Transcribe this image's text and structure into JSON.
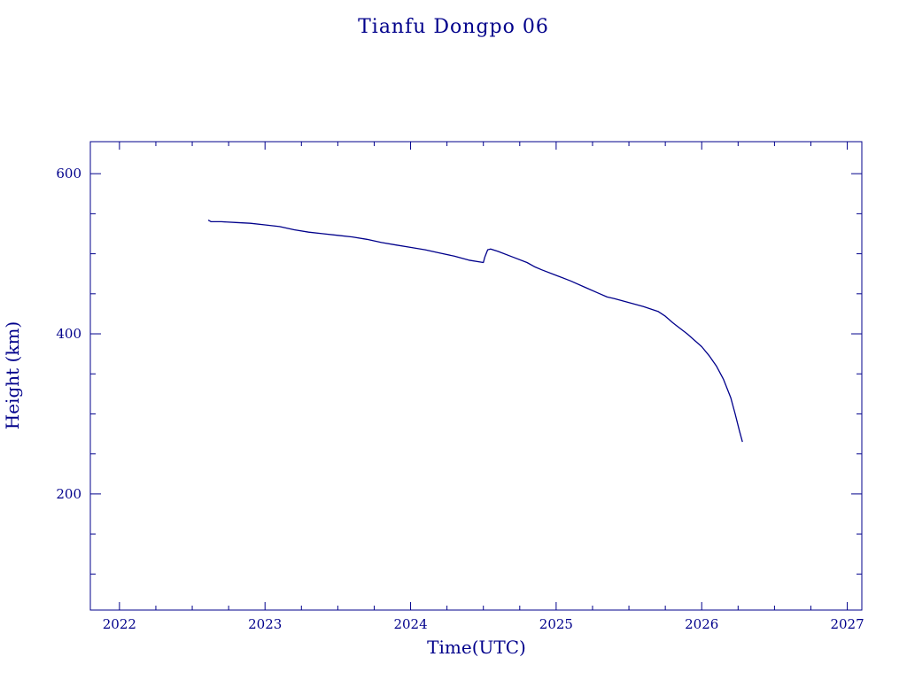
{
  "chart_data": {
    "type": "line",
    "title": "Tianfu Dongpo 06",
    "xlabel": "Time(UTC)",
    "ylabel": "Height (km)",
    "xlim": [
      2021.8,
      2027.1
    ],
    "ylim": [
      55,
      640
    ],
    "x_ticks": [
      2022,
      2023,
      2024,
      2025,
      2026,
      2027
    ],
    "x_minor_step": 0.25,
    "y_ticks": [
      200,
      400,
      600
    ],
    "y_minor_step": 50,
    "grid": false,
    "color": "#00008b",
    "series": [
      {
        "x": [
          2022.61,
          2022.63,
          2022.7,
          2022.8,
          2022.9,
          2023.0,
          2023.1,
          2023.2,
          2023.3,
          2023.4,
          2023.5,
          2023.6,
          2023.7,
          2023.8,
          2023.9,
          2024.0,
          2024.1,
          2024.2,
          2024.3,
          2024.4,
          2024.5,
          2024.51,
          2024.53,
          2024.55,
          2024.6,
          2024.7,
          2024.8,
          2024.85,
          2024.9,
          2025.0,
          2025.1,
          2025.2,
          2025.3,
          2025.35,
          2025.4,
          2025.5,
          2025.6,
          2025.7,
          2025.75,
          2025.8,
          2025.9,
          2026.0,
          2026.05,
          2026.1,
          2026.15,
          2026.2,
          2026.23,
          2026.26,
          2026.28
        ],
        "y": [
          542,
          540,
          540,
          539,
          538,
          536,
          534,
          530,
          527,
          525,
          523,
          521,
          518,
          514,
          511,
          508,
          505,
          501,
          497,
          492,
          489,
          496,
          505,
          506,
          503,
          496,
          489,
          484,
          480,
          473,
          466,
          458,
          450,
          446,
          444,
          439,
          434,
          428,
          422,
          414,
          400,
          384,
          373,
          360,
          343,
          320,
          300,
          278,
          265
        ]
      }
    ]
  }
}
